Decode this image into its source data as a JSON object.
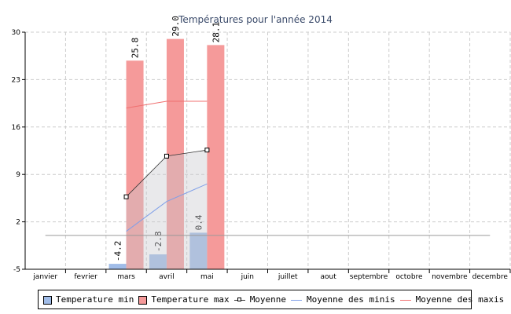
{
  "chart_data": {
    "type": "bar",
    "title": "Températures pour l'année 2014",
    "categories": [
      "janvier",
      "fevrier",
      "mars",
      "avril",
      "mai",
      "juin",
      "juillet",
      "aout",
      "septembre",
      "octobre",
      "novembre",
      "decembre"
    ],
    "ylim": [
      -5,
      30
    ],
    "yticks": [
      30,
      23,
      16,
      9,
      2,
      -5
    ],
    "grid": true,
    "series": [
      {
        "name": "Temperature min",
        "type": "bar",
        "color": "#a0bce8",
        "values": [
          null,
          null,
          -4.2,
          -2.8,
          0.4,
          null,
          null,
          null,
          null,
          null,
          null,
          null
        ],
        "labels": [
          null,
          null,
          "-4.2",
          "-2.8",
          "0.4",
          null,
          null,
          null,
          null,
          null,
          null,
          null
        ]
      },
      {
        "name": "Temperature max",
        "type": "bar",
        "color": "#f59a9a",
        "values": [
          null,
          null,
          25.8,
          29.0,
          28.1,
          null,
          null,
          null,
          null,
          null,
          null,
          null
        ],
        "labels": [
          null,
          null,
          "25.8",
          "29.0",
          "28.1",
          null,
          null,
          null,
          null,
          null,
          null,
          null
        ]
      },
      {
        "name": "Moyenne",
        "type": "line",
        "color": "#333333",
        "values": [
          null,
          null,
          5.7,
          11.7,
          12.6,
          null,
          null,
          null,
          null,
          null,
          null,
          null
        ]
      },
      {
        "name": "Moyenne des minis",
        "type": "line",
        "color": "#7f9fe8",
        "values": [
          null,
          null,
          0.6,
          5.0,
          7.6,
          null,
          null,
          null,
          null,
          null,
          null,
          null
        ]
      },
      {
        "name": "Moyenne des maxis",
        "type": "line",
        "color": "#f07070",
        "values": [
          null,
          null,
          18.8,
          19.8,
          19.8,
          null,
          null,
          null,
          null,
          null,
          null,
          null
        ]
      }
    ],
    "reference_line": {
      "value": 0,
      "color": "#999999"
    },
    "legend_position": "bottom"
  }
}
